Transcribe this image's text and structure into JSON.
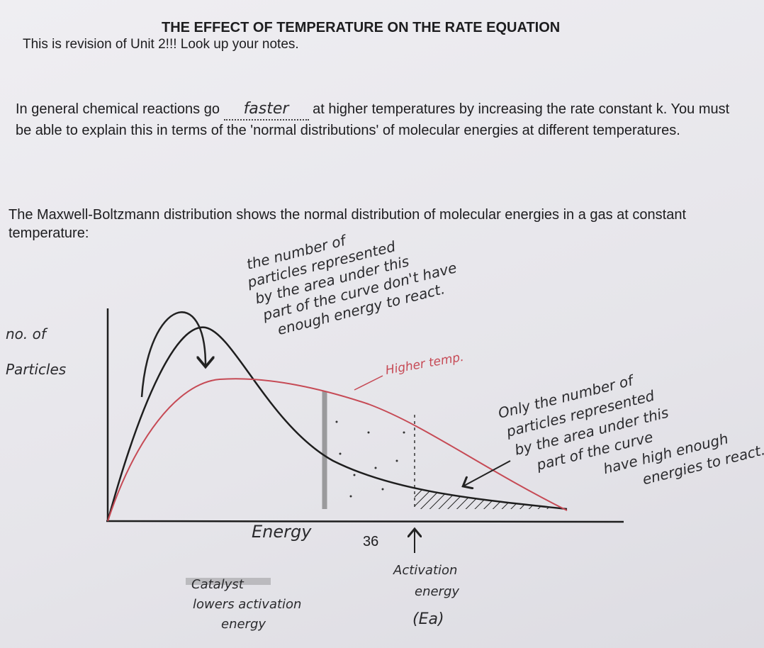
{
  "header": {
    "title": "THE EFFECT OF TEMPERATURE ON THE RATE EQUATION",
    "subtitle": "This is revision of Unit 2!!! Look up your notes."
  },
  "body": {
    "paragraph_1": {
      "before": "In general chemical reactions go",
      "answer": "faster",
      "after": "at higher temperatures by increasing the rate constant k. You must be able to explain this in terms of the 'normal distributions' of molecular energies at different temperatures."
    },
    "paragraph_2": "The Maxwell-Boltzmann distribution shows the normal distribution of molecular energies in a gas at constant temperature:"
  },
  "diagram": {
    "y_axis_label": [
      "no. of",
      "Particles"
    ],
    "x_axis_label": "Energy",
    "curve_label": "Higher temp.",
    "annotation_left": [
      "the number of",
      "particles represented",
      "by the area under this",
      "part of the curve don't have",
      "enough energy to react."
    ],
    "annotation_right": [
      "Only the number of",
      "particles represented",
      "by the area under this",
      "part of the curve",
      "have high enough",
      "energies to react."
    ],
    "activation_energy_label": [
      "Activation",
      "energy",
      "(Ea)"
    ],
    "catalyst_note": [
      "Catalyst",
      "lowers activation",
      "energy"
    ]
  },
  "footer": {
    "page_number": "36"
  }
}
